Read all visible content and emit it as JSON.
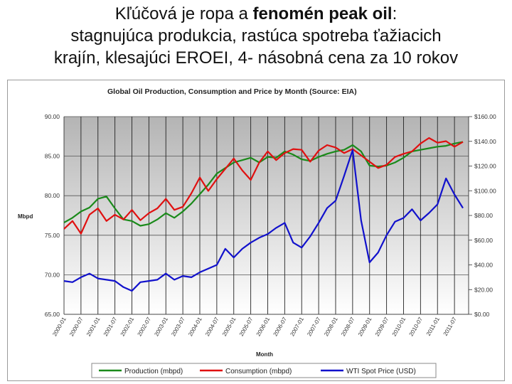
{
  "slide": {
    "title_line1_a": "Kľúčová je ropa a ",
    "title_line1_b": "fenomén peak oil",
    "title_line1_c": ":",
    "title_line2": "stagnujúca produkcia, rastúca spotreba ťažiacich",
    "title_line3": "krajín, klesajúci EROEI, 4- násobná cena za 10 rokov"
  },
  "chart_data": {
    "type": "line",
    "title": "Global Oil Production, Consumption and Price by Month (Source: EIA)",
    "xlabel": "Month",
    "ylabel": "Mbpd",
    "ylim": [
      65,
      90
    ],
    "y2lim": [
      0,
      160
    ],
    "grid": true,
    "legend_position": "bottom",
    "y_ticks": [
      "65.00",
      "70.00",
      "75.00",
      "80.00",
      "85.00",
      "90.00"
    ],
    "y2_ticks": [
      "$0.00",
      "$20.00",
      "$40.00",
      "$60.00",
      "$80.00",
      "$100.00",
      "$120.00",
      "$140.00",
      "$160.00"
    ],
    "x_ticks": [
      "2000-01",
      "2000-07",
      "2001-01",
      "2001-07",
      "2002-01",
      "2002-07",
      "2003-01",
      "2003-07",
      "2004-01",
      "2004-07",
      "2005-01",
      "2005-07",
      "2006-01",
      "2006-07",
      "2007-01",
      "2007-07",
      "2008-01",
      "2008-07",
      "2009-01",
      "2009-07",
      "2010-01",
      "2010-07",
      "2011-01",
      "2011-07"
    ],
    "series": [
      {
        "name": "Production (mbpd)",
        "axis": "left",
        "color": "#1a8a1a",
        "x": [
          "2000-01",
          "2000-04",
          "2000-07",
          "2000-10",
          "2001-01",
          "2001-04",
          "2001-07",
          "2001-10",
          "2002-01",
          "2002-04",
          "2002-07",
          "2002-10",
          "2003-01",
          "2003-04",
          "2003-07",
          "2003-10",
          "2004-01",
          "2004-04",
          "2004-07",
          "2004-10",
          "2005-01",
          "2005-04",
          "2005-07",
          "2005-10",
          "2006-01",
          "2006-04",
          "2006-07",
          "2006-10",
          "2007-01",
          "2007-04",
          "2007-07",
          "2007-10",
          "2008-01",
          "2008-04",
          "2008-07",
          "2008-10",
          "2009-01",
          "2009-04",
          "2009-07",
          "2009-10",
          "2010-01",
          "2010-04",
          "2010-07",
          "2010-10",
          "2011-01",
          "2011-04",
          "2011-07",
          "2011-10"
        ],
        "values": [
          76.6,
          77.2,
          78.0,
          78.5,
          79.6,
          79.9,
          78.4,
          77.0,
          76.8,
          76.2,
          76.4,
          77.0,
          77.8,
          77.2,
          78.0,
          79.0,
          80.2,
          81.4,
          82.8,
          83.5,
          84.2,
          84.5,
          84.8,
          84.2,
          84.9,
          84.8,
          85.6,
          85.2,
          84.6,
          84.4,
          84.9,
          85.3,
          85.6,
          85.8,
          86.4,
          85.6,
          83.8,
          83.7,
          83.8,
          84.2,
          84.8,
          85.6,
          85.8,
          86.0,
          86.2,
          86.3,
          86.6,
          86.8
        ]
      },
      {
        "name": "Consumption (mbpd)",
        "axis": "left",
        "color": "#e01010",
        "x": [
          "2000-01",
          "2000-04",
          "2000-07",
          "2000-10",
          "2001-01",
          "2001-04",
          "2001-07",
          "2001-10",
          "2002-01",
          "2002-04",
          "2002-07",
          "2002-10",
          "2003-01",
          "2003-04",
          "2003-07",
          "2003-10",
          "2004-01",
          "2004-04",
          "2004-07",
          "2004-10",
          "2005-01",
          "2005-04",
          "2005-07",
          "2005-10",
          "2006-01",
          "2006-04",
          "2006-07",
          "2006-10",
          "2007-01",
          "2007-04",
          "2007-07",
          "2007-10",
          "2008-01",
          "2008-04",
          "2008-07",
          "2008-10",
          "2009-01",
          "2009-04",
          "2009-07",
          "2009-10",
          "2010-01",
          "2010-04",
          "2010-07",
          "2010-10",
          "2011-01",
          "2011-04",
          "2011-07",
          "2011-10"
        ],
        "values": [
          75.8,
          76.8,
          75.2,
          77.6,
          78.4,
          76.8,
          77.6,
          77.0,
          78.2,
          76.9,
          77.8,
          78.4,
          79.6,
          78.2,
          78.6,
          80.3,
          82.3,
          80.6,
          82.1,
          83.4,
          84.7,
          83.2,
          82.0,
          84.2,
          85.6,
          84.5,
          85.4,
          85.9,
          85.8,
          84.3,
          85.7,
          86.4,
          86.1,
          85.4,
          85.9,
          85.1,
          84.3,
          83.5,
          83.9,
          84.9,
          85.3,
          85.6,
          86.6,
          87.3,
          86.7,
          86.9,
          86.2,
          86.8
        ]
      },
      {
        "name": "WTI Spot Price (USD)",
        "axis": "right",
        "color": "#1111cc",
        "x": [
          "2000-01",
          "2000-04",
          "2000-07",
          "2000-10",
          "2001-01",
          "2001-04",
          "2001-07",
          "2001-10",
          "2002-01",
          "2002-04",
          "2002-07",
          "2002-10",
          "2003-01",
          "2003-04",
          "2003-07",
          "2003-10",
          "2004-01",
          "2004-04",
          "2004-07",
          "2004-10",
          "2005-01",
          "2005-04",
          "2005-07",
          "2005-10",
          "2006-01",
          "2006-04",
          "2006-07",
          "2006-10",
          "2007-01",
          "2007-04",
          "2007-07",
          "2007-10",
          "2008-01",
          "2008-04",
          "2008-07",
          "2008-10",
          "2009-01",
          "2009-04",
          "2009-07",
          "2009-10",
          "2010-01",
          "2010-04",
          "2010-07",
          "2010-10",
          "2011-01",
          "2011-04",
          "2011-07",
          "2011-10"
        ],
        "values": [
          27,
          26,
          30,
          33,
          29,
          28,
          27,
          22,
          19,
          26,
          27,
          28,
          33,
          28,
          31,
          30,
          34,
          37,
          40,
          53,
          46,
          53,
          58,
          62,
          65,
          70,
          74,
          58,
          54,
          63,
          74,
          86,
          92,
          112,
          133,
          76,
          42,
          50,
          64,
          75,
          78,
          85,
          76,
          82,
          89,
          110,
          97,
          86
        ]
      }
    ]
  }
}
